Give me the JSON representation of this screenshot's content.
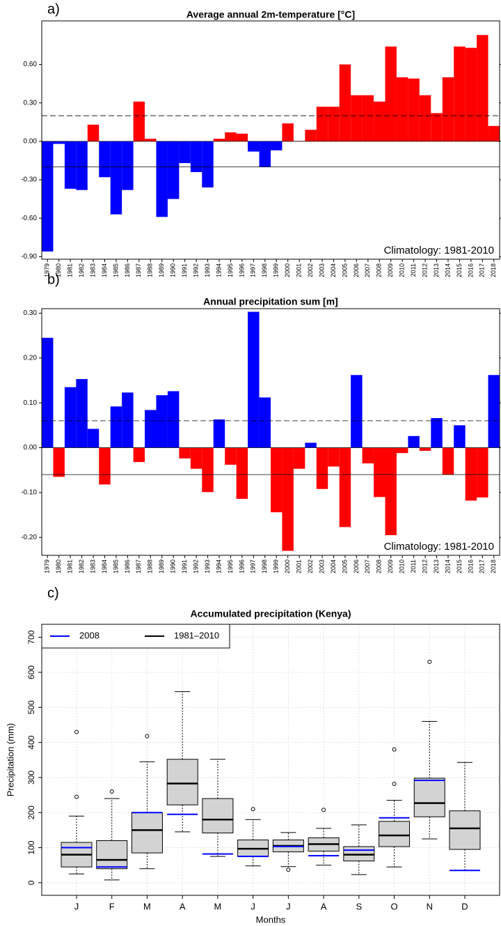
{
  "chart_data": [
    {
      "type": "bar",
      "panel_label": "a)",
      "title": "Average annual 2m-temperature [°C]",
      "categories": [
        "1979",
        "1980",
        "1981",
        "1982",
        "1983",
        "1984",
        "1985",
        "1986",
        "1987",
        "1988",
        "1989",
        "1990",
        "1991",
        "1992",
        "1993",
        "1994",
        "1995",
        "1996",
        "1997",
        "1998",
        "1999",
        "2000",
        "2001",
        "2002",
        "2003",
        "2004",
        "2005",
        "2006",
        "2007",
        "2008",
        "2009",
        "2010",
        "2011",
        "2012",
        "2013",
        "2014",
        "2015",
        "2016",
        "2017",
        "2018"
      ],
      "values": [
        -0.86,
        -0.02,
        -0.37,
        -0.38,
        0.13,
        -0.28,
        -0.57,
        -0.38,
        0.31,
        0.02,
        -0.59,
        -0.45,
        -0.17,
        -0.24,
        -0.36,
        0.02,
        0.07,
        0.06,
        -0.08,
        -0.2,
        -0.07,
        0.14,
        0.003,
        0.09,
        0.27,
        0.27,
        0.6,
        0.36,
        0.36,
        0.31,
        0.74,
        0.5,
        0.49,
        0.36,
        0.22,
        0.5,
        0.74,
        0.73,
        0.83,
        0.12
      ],
      "positive_color": "#ff0000",
      "negative_color": "#0000ff",
      "ylim": [
        -0.92,
        0.94
      ],
      "yticks": [
        {
          "value": -0.9,
          "label": "-0.90"
        },
        {
          "value": -0.6,
          "label": "-0.60"
        },
        {
          "value": -0.3,
          "label": "-0.30"
        },
        {
          "value": 0,
          "label": "0.00"
        },
        {
          "value": 0.3,
          "label": "0.30"
        },
        {
          "value": 0.6,
          "label": "0.60"
        }
      ],
      "reference_lines": [
        {
          "value": 0.2,
          "style": "dashed"
        },
        {
          "value": -0.2,
          "style": "solid"
        }
      ],
      "annotation": "Climatology: 1981-2010"
    },
    {
      "type": "bar",
      "panel_label": "b)",
      "title": "Annual precipitation sum [m]",
      "categories": [
        "1979",
        "1980",
        "1981",
        "1982",
        "1983",
        "1984",
        "1985",
        "1986",
        "1987",
        "1988",
        "1989",
        "1990",
        "1991",
        "1992",
        "1993",
        "1994",
        "1995",
        "1996",
        "1997",
        "1998",
        "1999",
        "2000",
        "2001",
        "2002",
        "2003",
        "2004",
        "2005",
        "2006",
        "2007",
        "2008",
        "2009",
        "2010",
        "2011",
        "2012",
        "2013",
        "2014",
        "2015",
        "2016",
        "2017",
        "2018"
      ],
      "values": [
        0.245,
        -0.065,
        0.135,
        0.153,
        0.042,
        -0.082,
        0.092,
        0.123,
        -0.032,
        0.084,
        0.117,
        0.126,
        -0.024,
        -0.047,
        -0.099,
        0.063,
        -0.038,
        -0.114,
        0.303,
        0.112,
        -0.144,
        -0.23,
        -0.047,
        0.011,
        -0.092,
        -0.042,
        -0.177,
        0.162,
        -0.035,
        -0.11,
        -0.195,
        -0.012,
        0.026,
        -0.007,
        0.066,
        -0.06,
        0.05,
        -0.118,
        -0.111,
        0.162
      ],
      "positive_color": "#0000ff",
      "negative_color": "#ff0000",
      "ylim": [
        -0.24,
        0.31
      ],
      "yticks": [
        {
          "value": -0.2,
          "label": "-0.20"
        },
        {
          "value": -0.1,
          "label": "-0.10"
        },
        {
          "value": 0,
          "label": "0.00"
        },
        {
          "value": 0.1,
          "label": "0.10"
        },
        {
          "value": 0.2,
          "label": "0.20"
        },
        {
          "value": 0.3,
          "label": "0.30"
        }
      ],
      "reference_lines": [
        {
          "value": 0.06,
          "style": "dashed"
        },
        {
          "value": -0.06,
          "style": "solid"
        }
      ],
      "annotation": "Climatology: 1981-2010"
    },
    {
      "type": "box",
      "panel_label": "c)",
      "title": "Accumulated precipitation (Kenya)",
      "x_label": "Months",
      "y_label": "Precipitation (mm)",
      "categories": [
        "J",
        "F",
        "M",
        "A",
        "M",
        "J",
        "J",
        "A",
        "S",
        "O",
        "N",
        "D"
      ],
      "series": [
        {
          "name": "2008",
          "color": "#0000ff",
          "values": [
            100,
            45,
            200,
            195,
            82,
            75,
            103,
            77,
            93,
            185,
            292,
            35
          ]
        },
        {
          "name": "1981–2010",
          "color": "#000000",
          "box_fill": "#d3d3d3",
          "low": [
            25,
            8,
            40,
            145,
            75,
            48,
            46,
            50,
            23,
            45,
            125,
            35
          ],
          "q1": [
            45,
            40,
            85,
            222,
            142,
            75,
            88,
            90,
            62,
            103,
            188,
            95
          ],
          "median": [
            80,
            65,
            150,
            283,
            180,
            97,
            105,
            110,
            80,
            135,
            227,
            155
          ],
          "q3": [
            115,
            120,
            200,
            352,
            240,
            122,
            122,
            128,
            103,
            175,
            298,
            205
          ],
          "high": [
            190,
            240,
            345,
            545,
            352,
            180,
            143,
            155,
            165,
            235,
            460,
            343
          ],
          "outliers": [
            [
              245,
              430
            ],
            [
              260
            ],
            [
              418
            ],
            [],
            [],
            [
              210
            ],
            [
              37
            ],
            [
              208
            ],
            [],
            [
              282,
              380
            ],
            [
              630
            ],
            []
          ]
        }
      ],
      "ylim": [
        -36,
        737
      ],
      "yticks": [
        0,
        100,
        200,
        300,
        400,
        500,
        600,
        700
      ],
      "grid": true,
      "legend_position": "top-left"
    }
  ]
}
